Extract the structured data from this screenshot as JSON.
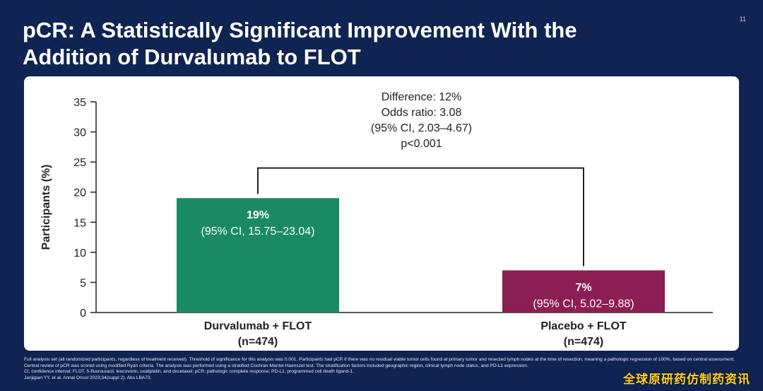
{
  "slide": {
    "number": "11",
    "title_line1": "pCR: A Statistically Significant Improvement With the",
    "title_line2": "Addition of Durvalumab to FLOT"
  },
  "chart_data": {
    "type": "bar",
    "ylabel": "Participants (%)",
    "xlabel": "",
    "ylim": [
      0,
      35
    ],
    "yticks": [
      0,
      5,
      10,
      15,
      20,
      25,
      30,
      35
    ],
    "grid": false,
    "categories": [
      {
        "name": "Durvalumab + FLOT",
        "n": "(n=474)"
      },
      {
        "name": "Placebo + FLOT",
        "n": "(n=474)"
      }
    ],
    "values": [
      19,
      7
    ],
    "data_labels": [
      {
        "value": "19%",
        "ci": "(95% CI, 15.75–23.04)"
      },
      {
        "value": "7%",
        "ci": "(95% CI, 5.02–9.88)"
      }
    ],
    "colors": [
      "#1a8a64",
      "#8b1e52"
    ],
    "annotation": {
      "lines": [
        "Difference: 12%",
        "Odds ratio: 3.08",
        "(95% CI, 2.03–4.67)",
        "p<0.001"
      ],
      "bracket_level": 24
    }
  },
  "footnotes": {
    "line1": "Full analysis set (all randomized participants, regardless of treatment received). Threshold of significance for this analysis was 0.001. Participants had pCR if there was no residual viable tumor cells found at primary tumor and resected lymph nodes at the time of resection, meaning a pathologic regression of 100%, based on central assessment. Central review of pCR was scored using modified Ryan criteria. The analysis was performed using a stratified Cochran-Mantel-Haenszel test. The stratification factors included geographic region, clinical lymph node status, and PD-L1 expression.",
    "line2": "CI, confidence interval; FLOT, 5-fluorouracil, leucovorin, oxaliplatin, and docetaxel; pCR, pathologic complete response; PD-L1, programmed cell death ligand-1.",
    "line3": "Janjigian YY, et al. Annal Oncol 2023;34(suppl 2). Abs LBA73."
  },
  "watermark": "全球原研药仿制药资讯",
  "colors": {
    "background": "#0f2452",
    "panel": "#ffffff"
  }
}
